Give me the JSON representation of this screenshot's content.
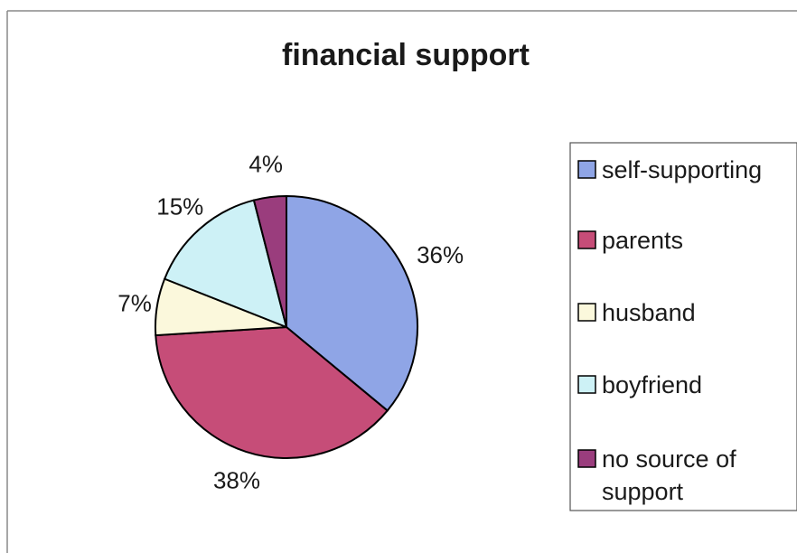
{
  "chart_data": {
    "type": "pie",
    "title": "financial support",
    "categories": [
      "self-supporting",
      "parents",
      "husband",
      "boyfriend",
      "no source of support"
    ],
    "values": [
      36,
      38,
      7,
      15,
      4
    ],
    "labels": [
      "36%",
      "38%",
      "7%",
      "15%",
      "4%"
    ],
    "colors": [
      "#8fa5e6",
      "#c64d78",
      "#fbf8dc",
      "#cdf1f6",
      "#9a3d7d"
    ],
    "legend_position": "right",
    "legend": [
      {
        "lines": [
          "self-supporting"
        ],
        "color": "#8fa5e6"
      },
      {
        "lines": [
          "parents"
        ],
        "color": "#c64d78"
      },
      {
        "lines": [
          "husband"
        ],
        "color": "#fbf8dc"
      },
      {
        "lines": [
          "boyfriend"
        ],
        "color": "#cdf1f6"
      },
      {
        "lines": [
          "no source of",
          "support"
        ],
        "color": "#9a3d7d"
      }
    ]
  }
}
